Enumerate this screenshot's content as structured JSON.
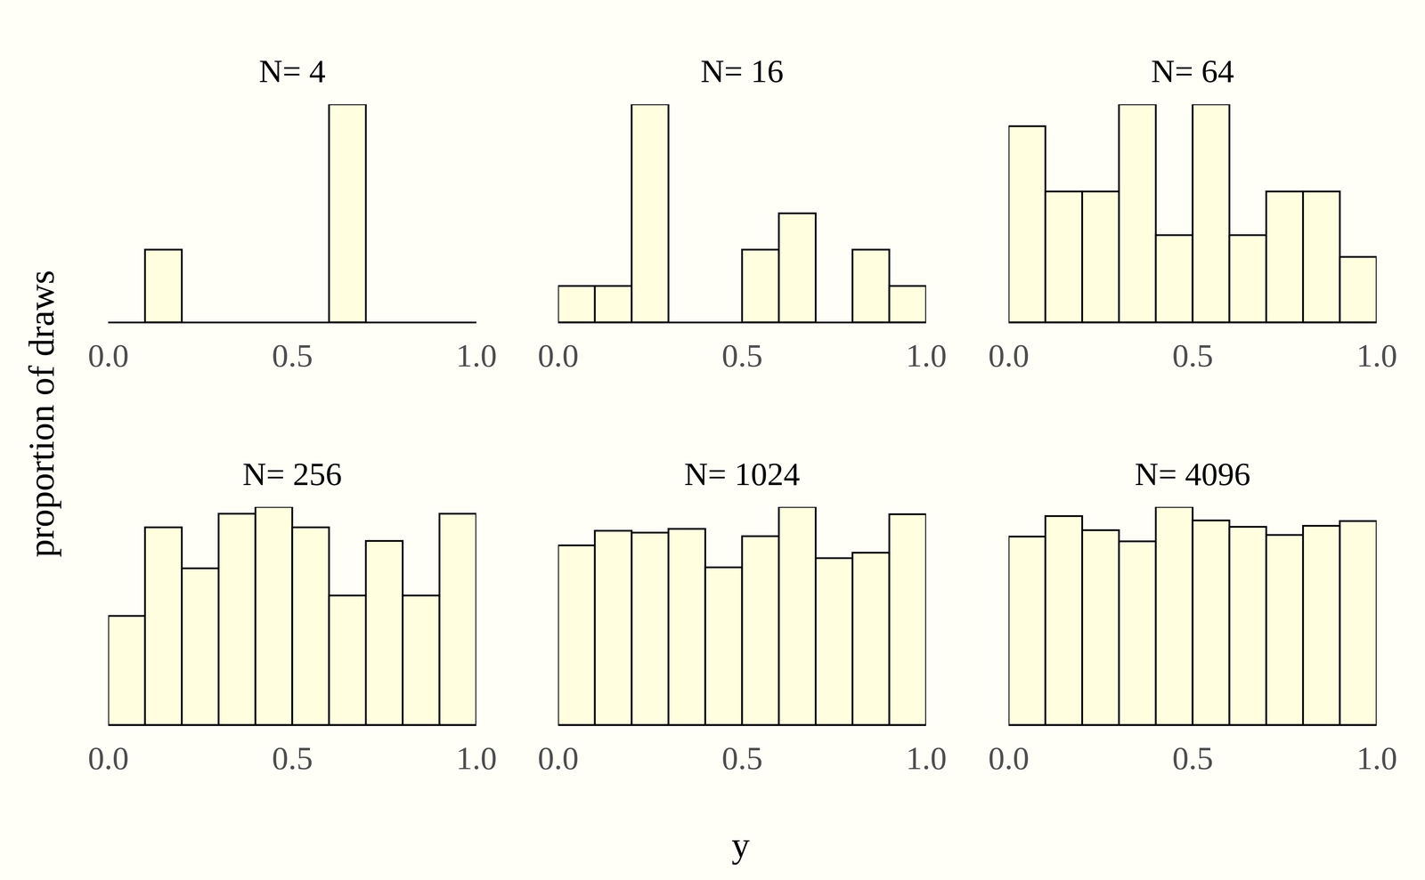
{
  "chart_data": {
    "type": "histogram",
    "xlabel": "y",
    "ylabel": "proportion of draws",
    "panels": [
      {
        "title": "N= 4",
        "bins": [
          0,
          0.1,
          0.2,
          0.3,
          0.4,
          0.5,
          0.6,
          0.7,
          0.8,
          0.9,
          1.0
        ],
        "values": [
          0,
          0.25,
          0,
          0,
          0,
          0,
          0.75,
          0,
          0,
          0
        ],
        "xlim": [
          0,
          1
        ],
        "xticks": [
          {
            "value": 0,
            "label": "0.0"
          },
          {
            "value": 0.5,
            "label": "0.5"
          },
          {
            "value": 1,
            "label": "1.0"
          }
        ],
        "ylim": [
          0,
          0.75
        ],
        "tick_labels": "x",
        "color": "#ffffe0"
      },
      {
        "title": "N= 16",
        "bins": [
          0,
          0.1,
          0.2,
          0.3,
          0.4,
          0.5,
          0.6,
          0.7,
          0.8,
          0.9,
          1.0
        ],
        "values": [
          0.0625,
          0.0625,
          0.375,
          0,
          0,
          0.125,
          0.1875,
          0,
          0.125,
          0.0625
        ],
        "xlim": [
          0,
          1
        ],
        "xticks": [
          {
            "value": 0,
            "label": "0.0"
          },
          {
            "value": 0.5,
            "label": "0.5"
          },
          {
            "value": 1,
            "label": "1.0"
          }
        ],
        "ylim": [
          0,
          0.375
        ],
        "tick_labels": "x",
        "color": "#ffffe0"
      },
      {
        "title": "N= 64",
        "bins": [
          0,
          0.1,
          0.2,
          0.3,
          0.4,
          0.5,
          0.6,
          0.7,
          0.8,
          0.9,
          1.0
        ],
        "values": [
          0.1406,
          0.0938,
          0.0938,
          0.1563,
          0.0625,
          0.1563,
          0.0625,
          0.0938,
          0.0938,
          0.0469
        ],
        "xlim": [
          0,
          1
        ],
        "xticks": [
          {
            "value": 0,
            "label": "0.0"
          },
          {
            "value": 0.5,
            "label": "0.5"
          },
          {
            "value": 1,
            "label": "1.0"
          }
        ],
        "ylim": [
          0,
          0.1563
        ],
        "tick_labels": "x",
        "color": "#ffffe0"
      },
      {
        "title": "N= 256",
        "bins": [
          0,
          0.1,
          0.2,
          0.3,
          0.4,
          0.5,
          0.6,
          0.7,
          0.8,
          0.9,
          1.0
        ],
        "values": [
          0.0625,
          0.1133,
          0.0898,
          0.1211,
          0.125,
          0.1133,
          0.0742,
          0.1055,
          0.0742,
          0.1211
        ],
        "xlim": [
          0,
          1
        ],
        "xticks": [
          {
            "value": 0,
            "label": "0.0"
          },
          {
            "value": 0.5,
            "label": "0.5"
          },
          {
            "value": 1,
            "label": "1.0"
          }
        ],
        "ylim": [
          0,
          0.125
        ],
        "tick_labels": "x",
        "color": "#ffffe0"
      },
      {
        "title": "N= 1024",
        "bins": [
          0,
          0.1,
          0.2,
          0.3,
          0.4,
          0.5,
          0.6,
          0.7,
          0.8,
          0.9,
          1.0
        ],
        "values": [
          0.0957,
          0.1035,
          0.1025,
          0.1045,
          0.084,
          0.1006,
          0.1162,
          0.0889,
          0.0918,
          0.1123
        ],
        "xlim": [
          0,
          1
        ],
        "xticks": [
          {
            "value": 0,
            "label": "0.0"
          },
          {
            "value": 0.5,
            "label": "0.5"
          },
          {
            "value": 1,
            "label": "1.0"
          }
        ],
        "ylim": [
          0,
          0.1162
        ],
        "tick_labels": "x",
        "color": "#ffffe0"
      },
      {
        "title": "N= 4096",
        "bins": [
          0,
          0.1,
          0.2,
          0.3,
          0.4,
          0.5,
          0.6,
          0.7,
          0.8,
          0.9,
          1.0
        ],
        "values": [
          0.0947,
          0.105,
          0.0979,
          0.0923,
          0.1096,
          0.1028,
          0.0996,
          0.0955,
          0.1001,
          0.1025
        ],
        "xlim": [
          0,
          1
        ],
        "xticks": [
          {
            "value": 0,
            "label": "0.0"
          },
          {
            "value": 0.5,
            "label": "0.5"
          },
          {
            "value": 1,
            "label": "1.0"
          }
        ],
        "ylim": [
          0,
          0.1096
        ],
        "tick_labels": "x",
        "color": "#ffffe0"
      }
    ]
  }
}
